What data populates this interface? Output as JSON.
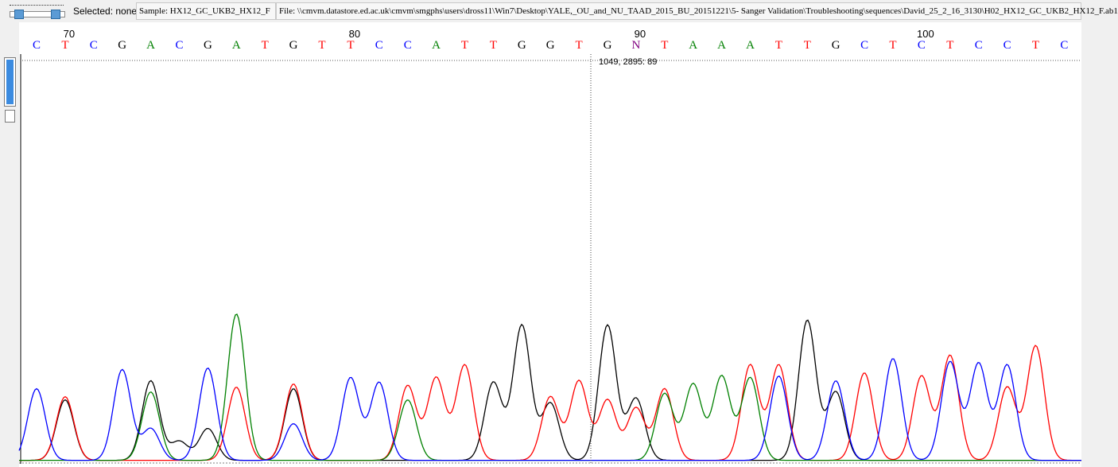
{
  "toolbar": {
    "selected_label": "Selected: none",
    "sample_field": "Sample: HX12_GC_UKB2_HX12_F",
    "file_field": "File: \\\\cmvm.datastore.ed.ac.uk\\cmvm\\smgphs\\users\\dross11\\Win7\\Desktop\\YALE,_OU_and_NU_TAAD_2015_BU_20151221\\5- Sanger Validation\\Troubleshooting\\sequences\\David_25_2_16_3130\\H02_HX12_GC_UKB2_HX12_F.ab1"
  },
  "colors": {
    "A": "#008000",
    "C": "#0000ff",
    "G": "#000000",
    "T": "#ff0000",
    "N": "#800080"
  },
  "position_ticks": [
    "70",
    "80",
    "90",
    "100"
  ],
  "bases": [
    "C",
    "T",
    "C",
    "G",
    "A",
    "C",
    "G",
    "A",
    "T",
    "G",
    "T",
    "T",
    "C",
    "C",
    "A",
    "T",
    "T",
    "G",
    "G",
    "T",
    "G",
    "N",
    "T",
    "A",
    "A",
    "A",
    "T",
    "T",
    "G",
    "C",
    "T",
    "C",
    "T",
    "C",
    "C",
    "T",
    "C"
  ],
  "cursor": {
    "readout": "1049, 2895: 89"
  },
  "chart_data": {
    "type": "line",
    "title": "",
    "xlabel": "",
    "ylabel": "",
    "series": [
      {
        "name": "G",
        "peaks": [
          [
            1,
            0.38
          ],
          [
            4,
            0.5
          ],
          [
            5,
            0.12
          ],
          [
            6,
            0.2
          ],
          [
            9,
            0.45
          ],
          [
            16,
            0.49
          ],
          [
            17,
            0.85
          ],
          [
            18,
            0.36
          ],
          [
            20,
            0.85
          ],
          [
            21,
            0.39
          ],
          [
            27,
            0.88
          ],
          [
            28,
            0.43
          ]
        ]
      },
      {
        "name": "T",
        "peaks": [
          [
            1,
            0.4
          ],
          [
            7,
            0.46
          ],
          [
            9,
            0.48
          ],
          [
            13,
            0.47
          ],
          [
            14,
            0.52
          ],
          [
            15,
            0.6
          ],
          [
            18,
            0.4
          ],
          [
            19,
            0.5
          ],
          [
            20,
            0.38
          ],
          [
            21,
            0.33
          ],
          [
            22,
            0.45
          ],
          [
            25,
            0.6
          ],
          [
            26,
            0.6
          ],
          [
            29,
            0.55
          ],
          [
            31,
            0.53
          ],
          [
            32,
            0.66
          ],
          [
            34,
            0.46
          ],
          [
            35,
            0.72
          ]
        ]
      },
      {
        "name": "A",
        "peaks": [
          [
            4,
            0.43
          ],
          [
            7,
            0.92
          ],
          [
            13,
            0.38
          ],
          [
            22,
            0.42
          ],
          [
            23,
            0.48
          ],
          [
            24,
            0.53
          ],
          [
            25,
            0.52
          ]
        ]
      },
      {
        "name": "C",
        "peaks": [
          [
            0,
            0.45
          ],
          [
            3,
            0.57
          ],
          [
            4,
            0.2
          ],
          [
            6,
            0.58
          ],
          [
            9,
            0.23
          ],
          [
            11,
            0.52
          ],
          [
            12,
            0.49
          ],
          [
            26,
            0.53
          ],
          [
            28,
            0.5
          ],
          [
            30,
            0.64
          ],
          [
            32,
            0.62
          ],
          [
            33,
            0.61
          ],
          [
            34,
            0.6
          ]
        ]
      }
    ]
  }
}
